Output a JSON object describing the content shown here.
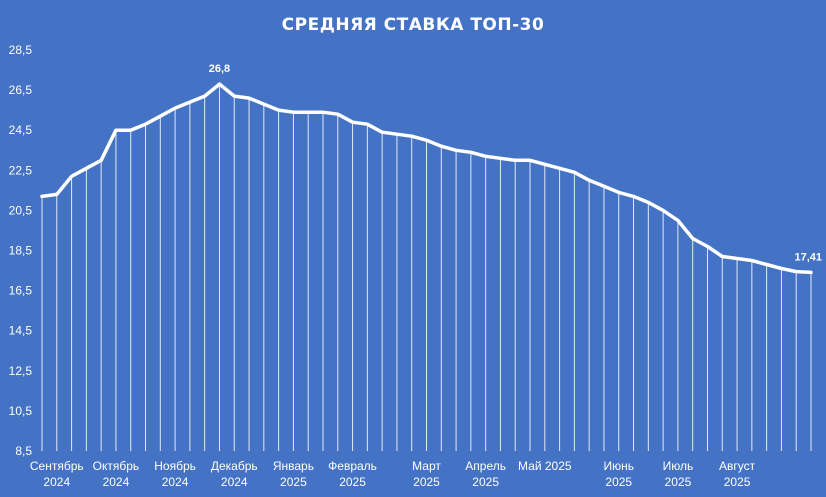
{
  "chart_data": {
    "type": "line",
    "title": "СРЕДНЯЯ СТАВКА ТОП-30",
    "xlabel": "",
    "ylabel": "",
    "ylim": [
      8.5,
      28.5
    ],
    "yticks": [
      "8,5",
      "10,5",
      "12,5",
      "14,5",
      "16,5",
      "18,5",
      "20,5",
      "22,5",
      "24,5",
      "26,5",
      "28,5"
    ],
    "grid": false,
    "drop_lines": true,
    "line_color": "#ffffff",
    "background": "#4472c4",
    "month_labels": [
      {
        "line1": "Сентябрь",
        "line2": "2024",
        "index": 1
      },
      {
        "line1": "Октябрь",
        "line2": "2024",
        "index": 5
      },
      {
        "line1": "Ноябрь",
        "line2": "2024",
        "index": 9
      },
      {
        "line1": "Декабрь",
        "line2": "2024",
        "index": 13
      },
      {
        "line1": "Январь",
        "line2": "2025",
        "index": 17
      },
      {
        "line1": "Февраль",
        "line2": "2025",
        "index": 21
      },
      {
        "line1": "Март",
        "line2": "2025",
        "index": 26
      },
      {
        "line1": "Апрель",
        "line2": "2025",
        "index": 30
      },
      {
        "line1": "Май 2025",
        "line2": "",
        "index": 34
      },
      {
        "line1": "Июнь",
        "line2": "2025",
        "index": 39
      },
      {
        "line1": "Июль",
        "line2": "2025",
        "index": 43
      },
      {
        "line1": "Август",
        "line2": "2025",
        "index": 47
      }
    ],
    "series": [
      {
        "values": [
          21.2,
          21.3,
          22.2,
          22.6,
          23.0,
          24.5,
          24.5,
          24.8,
          25.2,
          25.6,
          25.9,
          26.2,
          26.8,
          26.2,
          26.1,
          25.8,
          25.5,
          25.4,
          25.4,
          25.4,
          25.3,
          24.9,
          24.8,
          24.4,
          24.3,
          24.2,
          24.0,
          23.7,
          23.5,
          23.4,
          23.2,
          23.1,
          23.0,
          23.0,
          22.8,
          22.6,
          22.4,
          22.0,
          21.7,
          21.4,
          21.2,
          20.9,
          20.5,
          20.0,
          19.1,
          18.7,
          18.2,
          18.1,
          18.0,
          17.8,
          17.6,
          17.45,
          17.41
        ]
      }
    ],
    "data_labels": [
      {
        "index": 12,
        "text": "26,8"
      },
      {
        "index": 52,
        "text": "17,41"
      }
    ]
  }
}
